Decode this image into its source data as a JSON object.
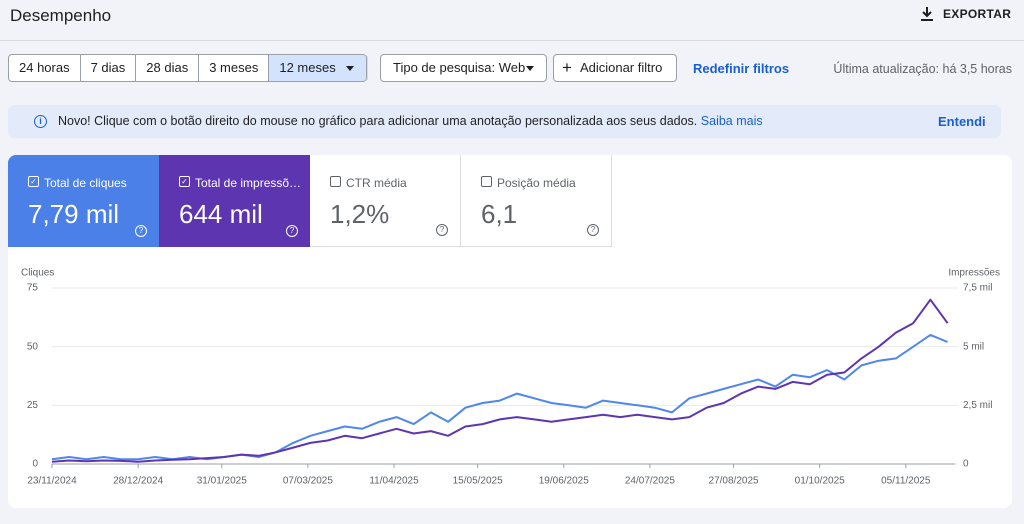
{
  "header": {
    "title": "Desempenho",
    "export": "EXPORTAR"
  },
  "filters": {
    "ranges": [
      "24 horas",
      "7 dias",
      "28 dias",
      "3 meses",
      "12 meses"
    ],
    "search_type": "Tipo de pesquisa: Web",
    "add_filter": "Adicionar filtro",
    "reset": "Redefinir filtros",
    "updated": "Última atualização: há 3,5 horas"
  },
  "banner": {
    "text": "Novo! Clique com o botão direito do mouse no gráfico para adicionar uma anotação personalizada aos seus dados.",
    "link": "Saiba mais",
    "dismiss": "Entendi"
  },
  "metrics": [
    {
      "label": "Total de cliques",
      "value": "7,79 mil"
    },
    {
      "label": "Total de impressõ…",
      "value": "644 mil"
    },
    {
      "label": "CTR média",
      "value": "1,2%"
    },
    {
      "label": "Posição média",
      "value": "6,1"
    }
  ],
  "chart_data": {
    "type": "line",
    "y_label": "Cliques",
    "y2_label": "Impressões",
    "x": [
      "23/11/2024",
      "30/11/2024",
      "07/12/2024",
      "14/12/2024",
      "21/12/2024",
      "28/12/2024",
      "04/01/2025",
      "11/01/2025",
      "18/01/2025",
      "25/01/2025",
      "01/02/2025",
      "08/02/2025",
      "15/02/2025",
      "22/02/2025",
      "01/03/2025",
      "08/03/2025",
      "15/03/2025",
      "22/03/2025",
      "29/03/2025",
      "05/04/2025",
      "12/04/2025",
      "19/04/2025",
      "26/04/2025",
      "03/05/2025",
      "10/05/2025",
      "17/05/2025",
      "24/05/2025",
      "31/05/2025",
      "07/06/2025",
      "14/06/2025",
      "21/06/2025",
      "28/06/2025",
      "05/07/2025",
      "12/07/2025",
      "19/07/2025",
      "26/07/2025",
      "02/08/2025",
      "09/08/2025",
      "16/08/2025",
      "23/08/2025",
      "30/08/2025",
      "06/09/2025",
      "13/09/2025",
      "20/09/2025",
      "27/09/2025",
      "04/10/2025",
      "11/10/2025",
      "18/10/2025",
      "25/10/2025",
      "01/11/2025",
      "08/11/2025",
      "15/11/2025",
      "22/11/2025"
    ],
    "xlim": [
      "23/11/2024",
      "25/11/2025"
    ],
    "xticks": [
      "23/11/2024",
      "28/12/2024",
      "31/01/2025",
      "07/03/2025",
      "11/04/2025",
      "15/05/2025",
      "19/06/2025",
      "24/07/2025",
      "27/08/2025",
      "01/10/2025",
      "05/11/2025"
    ],
    "ylim": [
      0,
      75
    ],
    "yticks": [
      0,
      25,
      50,
      75
    ],
    "y2lim": [
      0,
      7500
    ],
    "y2ticks": [
      0,
      {
        "value": 2500,
        "label": "2,5 mil"
      },
      {
        "value": 5000,
        "label": "5 mil"
      },
      {
        "value": 7500,
        "label": "7,5 mil"
      }
    ],
    "grid": true,
    "series": [
      {
        "name": "Total de cliques",
        "color": "#4f87ec",
        "values": [
          2,
          3,
          2,
          3,
          2,
          2,
          3,
          2,
          3,
          2,
          3,
          4,
          3,
          5,
          9,
          12,
          14,
          16,
          15,
          18,
          20,
          17,
          22,
          18,
          24,
          26,
          27,
          30,
          28,
          26,
          25,
          24,
          27,
          26,
          25,
          24,
          22,
          28,
          30,
          32,
          34,
          36,
          33,
          38,
          37,
          40,
          36,
          42,
          44,
          45,
          50,
          55,
          52
        ]
      },
      {
        "name": "Total de impressõ…",
        "color": "#5e35b1",
        "axis": "y2",
        "values": [
          100,
          150,
          120,
          150,
          130,
          100,
          150,
          180,
          200,
          250,
          300,
          400,
          350,
          500,
          700,
          900,
          1000,
          1200,
          1100,
          1300,
          1500,
          1300,
          1400,
          1200,
          1600,
          1700,
          1900,
          2000,
          1900,
          1800,
          1900,
          2000,
          2100,
          2000,
          2100,
          2000,
          1900,
          2000,
          2400,
          2600,
          3000,
          3300,
          3200,
          3500,
          3400,
          3800,
          3900,
          4500,
          5000,
          5600,
          6000,
          7000,
          6000
        ]
      }
    ]
  }
}
